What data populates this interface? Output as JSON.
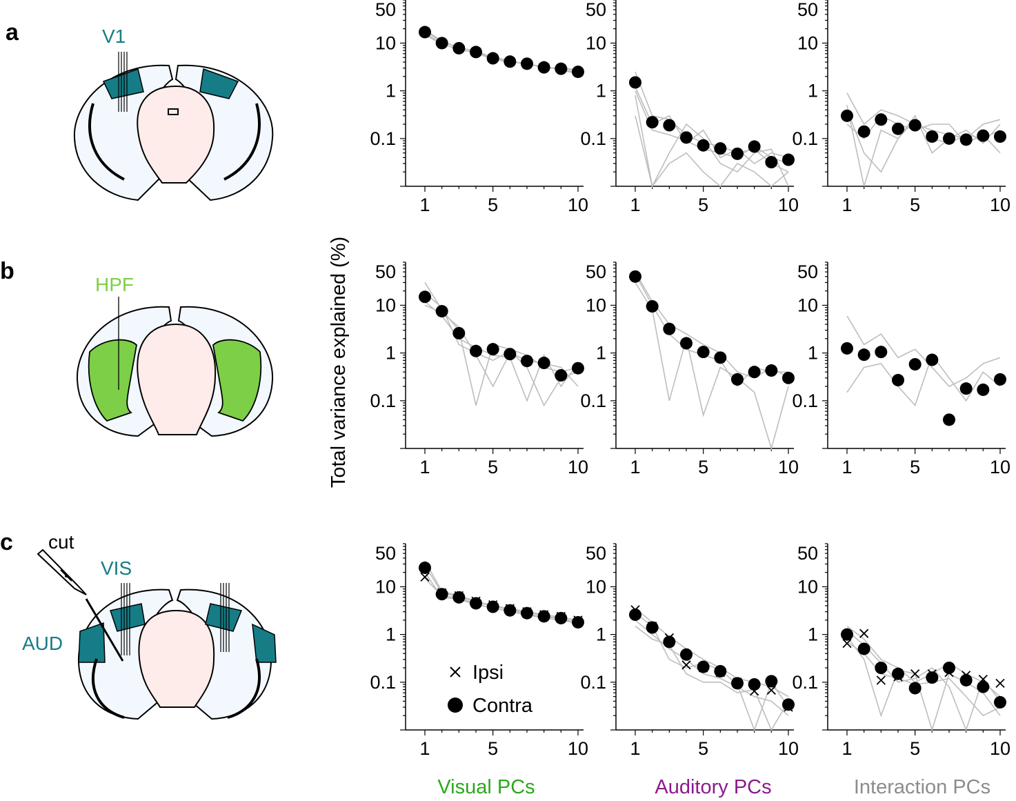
{
  "panel_labels": [
    "a",
    "b",
    "c"
  ],
  "brain_labels": {
    "a": "V1",
    "b": "HPF",
    "c_vis": "VIS",
    "c_aud": "AUD",
    "c_cut": "cut"
  },
  "ylabel": "Total variance explained (%)",
  "column_titles": [
    "Visual PCs",
    "Auditory PCs",
    "Interaction PCs"
  ],
  "legend": {
    "ipsi": "Ipsi",
    "contra": "Contra"
  },
  "colors": {
    "teal": "#167c86",
    "green": "#7ccf46",
    "purple": "#8a1a8e",
    "visual_green": "#2aa81b",
    "gray": "#8c8c8c",
    "brain_fill": "#f2f8fd",
    "core_fill": "#fdecea"
  },
  "chart_data": [
    {
      "type": "scatter",
      "row": "a",
      "column": "Visual PCs",
      "title": "",
      "xlabel": "",
      "ylabel": "Total variance explained (%)",
      "x": [
        1,
        2,
        3,
        4,
        5,
        6,
        7,
        8,
        9,
        10
      ],
      "contra": [
        17,
        10,
        7.8,
        6.5,
        4.8,
        4.1,
        3.7,
        3.1,
        2.9,
        2.5
      ],
      "ipsi": [],
      "xticks": [
        1,
        5,
        10
      ],
      "yticks": [
        "0.1",
        "1",
        "10",
        "50"
      ],
      "ylim": [
        0.01,
        80
      ],
      "yscale": "log",
      "gray_lines": [
        [
          19,
          11,
          8,
          6.8,
          5,
          4.2,
          3.6,
          3.2,
          2.8,
          2.4
        ],
        [
          15,
          9.5,
          7.5,
          6.2,
          4.6,
          4,
          3.8,
          3,
          3,
          2.6
        ],
        [
          18,
          10.5,
          8.2,
          6.6,
          5.1,
          4.3,
          3.5,
          3.3,
          2.7,
          2.3
        ],
        [
          16,
          9.8,
          7.2,
          6.4,
          4.7,
          3.9,
          3.9,
          2.9,
          3.1,
          2.7
        ]
      ]
    },
    {
      "type": "scatter",
      "row": "a",
      "column": "Auditory PCs",
      "title": "",
      "xlabel": "",
      "ylabel": "",
      "x": [
        1,
        2,
        3,
        4,
        5,
        6,
        7,
        8,
        9,
        10
      ],
      "contra": [
        1.5,
        0.22,
        0.19,
        0.105,
        0.072,
        0.062,
        0.048,
        0.068,
        0.032,
        0.036
      ],
      "ipsi": [],
      "xticks": [
        1,
        5,
        10
      ],
      "yticks": [
        "0.1",
        "1",
        "10",
        "50"
      ],
      "ylim": [
        0.01,
        80
      ],
      "yscale": "log",
      "gray_lines": [
        [
          2.5,
          0.3,
          0.25,
          0.12,
          0.08,
          0.07,
          0.05,
          0.06,
          0.03,
          0.02
        ],
        [
          1,
          0.15,
          0.12,
          0.09,
          0.06,
          0.05,
          0.04,
          0.07,
          0.04,
          0.03
        ],
        [
          0.8,
          0.01,
          0.05,
          0.2,
          0.1,
          0.03,
          0.02,
          0.05,
          0.06,
          0.01
        ],
        [
          1.2,
          0.2,
          0.3,
          0.08,
          0.15,
          0.04,
          0.06,
          0.03,
          0.05,
          0.04
        ],
        [
          0.3,
          0.01,
          0.03,
          0.05,
          0.02,
          0.01,
          0.03,
          0.02,
          0.01,
          0.02
        ]
      ]
    },
    {
      "type": "scatter",
      "row": "a",
      "column": "Interaction PCs",
      "title": "",
      "xlabel": "",
      "ylabel": "",
      "x": [
        1,
        2,
        3,
        4,
        5,
        6,
        7,
        8,
        9,
        10
      ],
      "contra": [
        0.3,
        0.14,
        0.25,
        0.16,
        0.19,
        0.11,
        0.1,
        0.095,
        0.115,
        0.11
      ],
      "ipsi": [],
      "xticks": [
        1,
        5,
        10
      ],
      "yticks": [
        "0.1",
        "1",
        "10",
        "50"
      ],
      "ylim": [
        0.01,
        80
      ],
      "yscale": "log",
      "gray_lines": [
        [
          0.9,
          0.2,
          0.4,
          0.3,
          0.2,
          0.15,
          0.12,
          0.1,
          0.2,
          0.25
        ],
        [
          0.5,
          0.01,
          0.15,
          0.1,
          0.25,
          0.1,
          0.08,
          0.12,
          0.1,
          0.15
        ],
        [
          0.2,
          0.1,
          0.3,
          0.2,
          0.15,
          0.2,
          0.2,
          0.08,
          0.12,
          0.05
        ],
        [
          0.4,
          0.05,
          0.02,
          0.1,
          0.3,
          0.05,
          0.1,
          0.15,
          0.08,
          0.2
        ]
      ]
    },
    {
      "type": "scatter",
      "row": "b",
      "column": "Visual PCs",
      "title": "",
      "xlabel": "",
      "ylabel": "",
      "x": [
        1,
        2,
        3,
        4,
        5,
        6,
        7,
        8,
        9,
        10
      ],
      "contra": [
        15,
        7.5,
        2.6,
        1.1,
        1.2,
        0.95,
        0.68,
        0.62,
        0.34,
        0.48
      ],
      "ipsi": [],
      "xticks": [
        1,
        5,
        10
      ],
      "yticks": [
        "0.1",
        "1",
        "10",
        "50"
      ],
      "ylim": [
        0.01,
        80
      ],
      "yscale": "log",
      "gray_lines": [
        [
          30,
          8,
          3,
          0.08,
          1.5,
          1.2,
          0.9,
          0.5,
          0.4,
          0.5
        ],
        [
          12,
          6,
          2,
          1.3,
          0.9,
          0.8,
          0.1,
          0.9,
          0.2,
          0.6
        ],
        [
          18,
          9,
          1.5,
          1,
          0.7,
          1.1,
          0.5,
          0.08,
          0.3,
          0.4
        ],
        [
          10,
          7,
          3.5,
          0.9,
          0.2,
          1,
          0.7,
          0.6,
          0.5,
          0.2
        ]
      ]
    },
    {
      "type": "scatter",
      "row": "b",
      "column": "Auditory PCs",
      "title": "",
      "xlabel": "",
      "ylabel": "",
      "x": [
        1,
        2,
        3,
        4,
        5,
        6,
        7,
        8,
        9,
        10
      ],
      "contra": [
        40,
        9.5,
        3.2,
        1.6,
        1.05,
        0.8,
        0.28,
        0.4,
        0.43,
        0.3
      ],
      "ipsi": [],
      "xticks": [
        1,
        5,
        10
      ],
      "yticks": [
        "0.1",
        "1",
        "10",
        "50"
      ],
      "ylim": [
        0.01,
        80
      ],
      "yscale": "log",
      "gray_lines": [
        [
          50,
          12,
          4,
          2.5,
          1.5,
          1,
          0.4,
          0.3,
          0.5,
          0.3
        ],
        [
          30,
          8,
          0.1,
          2,
          0.05,
          0.5,
          0.3,
          0.15,
          0.01,
          0.2
        ],
        [
          45,
          10,
          2.5,
          1.2,
          0.9,
          0.7,
          0.2,
          0.5,
          0.4,
          0.4
        ]
      ]
    },
    {
      "type": "scatter",
      "row": "b",
      "column": "Interaction PCs",
      "title": "",
      "xlabel": "",
      "ylabel": "",
      "x": [
        1,
        2,
        3,
        4,
        5,
        6,
        7,
        8,
        9,
        10
      ],
      "contra": [
        1.25,
        0.92,
        1.05,
        0.27,
        0.58,
        0.72,
        0.04,
        0.18,
        0.17,
        0.28
      ],
      "ipsi": [],
      "xticks": [
        1,
        5,
        10
      ],
      "yticks": [
        "0.1",
        "1",
        "10",
        "50"
      ],
      "ylim": [
        0.01,
        80
      ],
      "yscale": "log",
      "gray_lines": [
        [
          6,
          1.5,
          2.5,
          0.8,
          1.2,
          0.5,
          0.2,
          0.3,
          0.6,
          0.8
        ],
        [
          0.15,
          0.5,
          0.6,
          0.2,
          0.08,
          0.9,
          0.3,
          0.1,
          0.4,
          0.2
        ]
      ]
    },
    {
      "type": "scatter",
      "row": "c",
      "column": "Visual PCs",
      "title": "",
      "xlabel": "",
      "ylabel": "",
      "x": [
        1,
        2,
        3,
        4,
        5,
        6,
        7,
        8,
        9,
        10
      ],
      "contra": [
        25,
        7,
        6,
        4.5,
        3.8,
        3.2,
        2.8,
        2.4,
        2.2,
        1.8
      ],
      "ipsi": [
        16,
        7.5,
        6.5,
        5,
        4.2,
        3.5,
        3,
        2.6,
        2.4,
        2
      ],
      "xticks": [
        1,
        5,
        10
      ],
      "yticks": [
        "0.1",
        "1",
        "10",
        "50"
      ],
      "ylim": [
        0.01,
        80
      ],
      "yscale": "log",
      "gray_lines": [
        [
          35,
          8,
          6.5,
          5,
          4,
          3.5,
          3,
          2.6,
          2.3,
          2
        ],
        [
          20,
          6,
          5.5,
          4.2,
          3.6,
          3,
          2.6,
          2.2,
          2,
          1.7
        ],
        [
          28,
          7.5,
          6.2,
          4.8,
          3.9,
          3.3,
          2.9,
          2.5,
          2.1,
          1.9
        ],
        [
          15,
          6.5,
          5.8,
          4.4,
          3.5,
          3.1,
          2.7,
          2.3,
          2.2,
          1.6
        ]
      ]
    },
    {
      "type": "scatter",
      "row": "c",
      "column": "Auditory PCs",
      "title": "",
      "xlabel": "",
      "ylabel": "",
      "x": [
        1,
        2,
        3,
        4,
        5,
        6,
        7,
        8,
        9,
        10
      ],
      "contra": [
        2.6,
        1.4,
        0.7,
        0.38,
        0.21,
        0.17,
        0.095,
        0.09,
        0.105,
        0.034
      ],
      "ipsi": [
        3.3,
        1.5,
        0.85,
        0.23,
        0.2,
        0.16,
        0.1,
        0.065,
        0.068,
        0.03
      ],
      "xticks": [
        1,
        5,
        10
      ],
      "yticks": [
        "0.1",
        "1",
        "10",
        "50"
      ],
      "ylim": [
        0.01,
        80
      ],
      "yscale": "log",
      "gray_lines": [
        [
          3.5,
          1.8,
          0.9,
          0.5,
          0.3,
          0.2,
          0.12,
          0.1,
          0.08,
          0.05
        ],
        [
          2,
          1,
          0.5,
          0.3,
          0.15,
          0.12,
          0.08,
          0.05,
          0.04,
          0.02
        ],
        [
          2.8,
          1.5,
          0.3,
          0.2,
          0.25,
          0.18,
          0.09,
          0.01,
          0.1,
          0.03
        ],
        [
          1.5,
          0.8,
          0.6,
          0.15,
          0.1,
          0.1,
          0.06,
          0.07,
          0.01,
          0.04
        ]
      ]
    },
    {
      "type": "scatter",
      "row": "c",
      "column": "Interaction PCs",
      "title": "",
      "xlabel": "",
      "ylabel": "",
      "x": [
        1,
        2,
        3,
        4,
        5,
        6,
        7,
        8,
        9,
        10
      ],
      "contra": [
        1,
        0.5,
        0.2,
        0.15,
        0.075,
        0.125,
        0.2,
        0.11,
        0.08,
        0.038
      ],
      "ipsi": [
        0.65,
        1.05,
        0.11,
        0.13,
        0.15,
        0.15,
        0.16,
        0.14,
        0.115,
        0.095
      ],
      "xticks": [
        1,
        5,
        10
      ],
      "yticks": [
        "0.1",
        "1",
        "10",
        "50"
      ],
      "ylim": [
        0.01,
        80
      ],
      "yscale": "log",
      "gray_lines": [
        [
          1.5,
          0.8,
          0.3,
          0.2,
          0.1,
          0.15,
          0.25,
          0.15,
          0.1,
          0.05
        ],
        [
          0.7,
          0.4,
          0.15,
          0.12,
          0.09,
          0.1,
          0.12,
          0.05,
          0.02,
          0.03
        ],
        [
          1.2,
          0.6,
          0.25,
          0.1,
          0.12,
          0.2,
          0.08,
          0.01,
          0.12,
          0.04
        ],
        [
          0.9,
          0.3,
          0.02,
          0.18,
          0.15,
          0.01,
          0.15,
          0.1,
          0.06,
          0.02
        ]
      ]
    }
  ]
}
